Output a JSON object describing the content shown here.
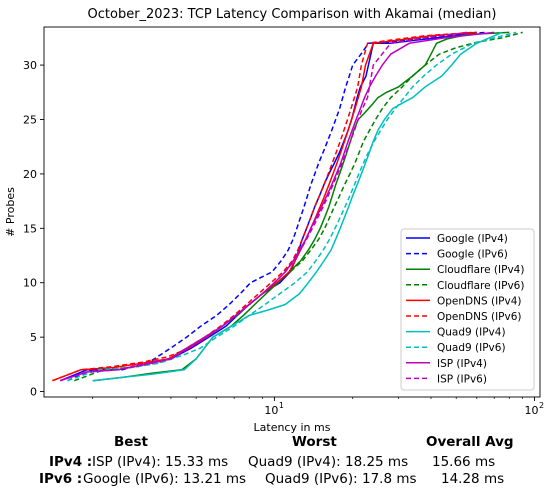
{
  "chart_data": {
    "type": "line",
    "title": "October_2023: TCP Latency Comparison with Akamai (median)",
    "xlabel": "Latency in ms",
    "ylabel": "# Probes",
    "xscale": "log",
    "xlim": [
      1.3,
      105
    ],
    "ylim": [
      -0.5,
      33.5
    ],
    "xticks": [
      {
        "value": 10,
        "label": "10",
        "exp": "1"
      },
      {
        "value": 100,
        "label": "10",
        "exp": "2"
      }
    ],
    "yticks": [
      0,
      5,
      10,
      15,
      20,
      25,
      30
    ],
    "grid": false,
    "legend": "lower-right",
    "series": [
      {
        "name": "Google (IPv4)",
        "color": "#0000ff",
        "dash": "solid",
        "x": [
          1.5,
          1.9,
          2.5,
          3.2,
          4.0,
          4.8,
          5.6,
          6.5,
          7.2,
          8.0,
          9.0,
          10.5,
          11.5,
          12.0,
          12.4,
          12.8,
          13.3,
          13.8,
          14.3,
          14.9,
          15.5,
          16.2,
          17.0,
          17.8,
          18.5,
          19.2,
          19.8,
          20.3,
          20.8,
          21.4,
          22.5,
          24.0,
          28.0,
          35.0,
          50.0,
          60.0
        ],
        "y": [
          1,
          2,
          2,
          2.5,
          3,
          4,
          5,
          6,
          7,
          8,
          9,
          10,
          11,
          12,
          13,
          14,
          15,
          16,
          17,
          18,
          19,
          20,
          21,
          22,
          23,
          24,
          25,
          26,
          27,
          28,
          29,
          32,
          32,
          32.3,
          32.7,
          33
        ]
      },
      {
        "name": "Google (IPv6)",
        "color": "#0000ff",
        "dash": "dashed",
        "x": [
          1.6,
          2.0,
          2.6,
          3.3,
          4.0,
          4.6,
          5.2,
          6.0,
          6.7,
          7.4,
          8.1,
          8.9,
          9.8,
          10.6,
          11.3,
          11.8,
          12.2,
          12.6,
          13.0,
          13.4,
          13.8,
          14.3,
          14.8,
          15.4,
          16.0,
          16.6,
          17.2,
          17.8,
          18.3,
          18.8,
          19.4,
          20.0,
          21.5,
          23.0,
          30.0,
          45.0,
          65.0
        ],
        "y": [
          1,
          2,
          2,
          2.7,
          4,
          5,
          6,
          7,
          8,
          9,
          10,
          10.5,
          11,
          12,
          13,
          14,
          15,
          16,
          17,
          18,
          19,
          20,
          21,
          22,
          23,
          24,
          25,
          26,
          27,
          28,
          29,
          30,
          31,
          32,
          32.2,
          32.7,
          33
        ]
      },
      {
        "name": "Cloudflare (IPv4)",
        "color": "#008000",
        "dash": "solid",
        "x": [
          2.0,
          2.6,
          3.4,
          4.4,
          5.0,
          5.8,
          6.8,
          7.6,
          8.4,
          9.3,
          10.3,
          11.4,
          12.6,
          13.5,
          14.3,
          15.0,
          15.6,
          16.2,
          16.7,
          17.2,
          17.8,
          18.4,
          19.0,
          19.6,
          20.2,
          21.0,
          22.0,
          23.0,
          24.0,
          25.0,
          27.0,
          30.0,
          34.0,
          38.0,
          40.0,
          42.0,
          46.0,
          55.0,
          80.0
        ],
        "y": [
          1,
          1.3,
          1.7,
          2,
          3,
          5,
          6,
          7,
          8,
          9,
          10,
          11,
          12,
          13,
          14,
          15,
          16,
          17,
          18,
          19,
          20,
          21,
          22,
          23,
          24,
          25,
          25.5,
          26,
          26.5,
          27,
          27.5,
          28,
          29,
          30,
          31,
          32,
          32.4,
          32.8,
          33
        ]
      },
      {
        "name": "Cloudflare (IPv6)",
        "color": "#008000",
        "dash": "dashed",
        "x": [
          1.7,
          2.2,
          3.0,
          3.8,
          4.6,
          5.4,
          6.3,
          7.2,
          8.0,
          9.0,
          10.2,
          11.5,
          12.8,
          13.8,
          14.8,
          15.6,
          16.3,
          17.0,
          17.8,
          18.6,
          19.5,
          20.4,
          21.2,
          22.0,
          23.2,
          24.5,
          26.0,
          28.0,
          31.0,
          34.0,
          38.0,
          43.0,
          50.0,
          60.0,
          75.0,
          90.0
        ],
        "y": [
          1,
          2,
          2.3,
          2.8,
          4,
          5,
          6,
          7,
          8,
          9,
          10,
          11,
          12,
          13,
          14,
          15,
          16,
          17,
          18,
          19,
          20,
          21,
          22,
          23,
          24,
          25,
          26,
          27,
          28,
          29,
          30,
          31,
          31.6,
          32.1,
          32.5,
          33
        ]
      },
      {
        "name": "OpenDNS (IPv4)",
        "color": "#ff0000",
        "dash": "solid",
        "x": [
          1.4,
          1.8,
          2.4,
          3.1,
          3.9,
          4.7,
          5.5,
          6.3,
          7.1,
          8.0,
          9.0,
          10.2,
          11.4,
          12.0,
          12.6,
          13.2,
          13.8,
          14.4,
          15.0,
          15.6,
          16.2,
          16.8,
          17.4,
          18.0,
          18.6,
          19.2,
          19.8,
          20.4,
          21.0,
          21.6,
          22.4,
          24.0,
          30.0,
          40.0,
          60.0
        ],
        "y": [
          1,
          2,
          2.2,
          2.6,
          3,
          4,
          5,
          6,
          7,
          8,
          9,
          10,
          11,
          12,
          13,
          14,
          15,
          16,
          17,
          18,
          19,
          20,
          21,
          22,
          23,
          24,
          25,
          26,
          27,
          28,
          30,
          32,
          32.3,
          32.7,
          33
        ]
      },
      {
        "name": "OpenDNS (IPv6)",
        "color": "#ff0000",
        "dash": "dashed",
        "x": [
          1.4,
          1.8,
          2.4,
          3.1,
          3.9,
          4.7,
          5.4,
          6.2,
          7.0,
          7.8,
          8.7,
          9.7,
          10.8,
          11.7,
          12.3,
          12.8,
          13.3,
          13.8,
          14.3,
          14.9,
          15.5,
          16.1,
          16.7,
          17.3,
          17.9,
          18.5,
          19.1,
          19.7,
          20.3,
          20.9,
          21.6,
          22.8,
          28.0,
          38.0,
          58.0
        ],
        "y": [
          1,
          2,
          2.3,
          2.7,
          3.2,
          4,
          5,
          6,
          7,
          8,
          9,
          10,
          11,
          12,
          13,
          14,
          15,
          16,
          17,
          18,
          19,
          20,
          21,
          22,
          23,
          24,
          25,
          26,
          27,
          28,
          30,
          32,
          32.3,
          32.7,
          33
        ]
      },
      {
        "name": "Quad9 (IPv4)",
        "color": "#00bfbf",
        "dash": "solid",
        "x": [
          2.0,
          2.6,
          3.4,
          4.5,
          5.0,
          5.8,
          6.8,
          8.0,
          9.5,
          11.0,
          12.5,
          13.5,
          14.5,
          15.5,
          16.5,
          17.2,
          17.9,
          18.6,
          19.3,
          20.0,
          20.8,
          21.6,
          22.4,
          23.2,
          24.0,
          25.0,
          26.5,
          28.5,
          31.0,
          34.0,
          38.0,
          44.0,
          48.0,
          52.0,
          60.0,
          75.0
        ],
        "y": [
          1,
          1.3,
          1.6,
          2,
          3,
          5,
          6,
          7,
          7.5,
          8,
          9,
          10,
          11,
          12,
          13,
          14,
          15,
          16,
          17,
          18,
          19,
          20,
          21,
          22,
          23,
          24,
          25,
          26,
          26.5,
          27,
          28,
          29,
          30,
          31,
          32,
          33
        ]
      },
      {
        "name": "Quad9 (IPv6)",
        "color": "#00bfbf",
        "dash": "dashed",
        "x": [
          1.6,
          2.1,
          2.8,
          3.6,
          4.4,
          5.2,
          6.0,
          7.0,
          8.0,
          9.2,
          10.5,
          12.0,
          13.4,
          14.4,
          15.4,
          16.3,
          17.1,
          17.9,
          18.7,
          19.5,
          20.3,
          21.1,
          22.0,
          23.0,
          24.2,
          25.6,
          27.2,
          29.2,
          31.5,
          34.0,
          37.5,
          42.0,
          48.0,
          58.0,
          70.0,
          85.0
        ],
        "y": [
          1,
          2,
          2.2,
          2.6,
          3.3,
          4,
          5,
          6,
          7,
          8,
          9,
          10,
          11,
          12,
          13,
          14,
          15,
          16,
          17,
          18,
          19,
          20,
          21,
          22,
          23,
          24,
          25,
          26,
          27,
          28,
          29,
          30,
          31,
          32,
          32.5,
          33
        ]
      },
      {
        "name": "ISP (IPv4)",
        "color": "#bf00bf",
        "dash": "solid",
        "x": [
          1.5,
          1.9,
          2.5,
          3.2,
          4.0,
          4.6,
          5.4,
          6.3,
          7.1,
          8.0,
          9.0,
          10.0,
          11.0,
          11.8,
          12.5,
          13.2,
          13.8,
          14.5,
          15.2,
          15.9,
          16.6,
          17.3,
          18.0,
          18.6,
          19.2,
          19.9,
          20.6,
          21.4,
          22.2,
          23.2,
          24.5,
          26.0,
          28.0,
          33.0,
          45.0,
          70.0
        ],
        "y": [
          1,
          1.8,
          2,
          2.5,
          3,
          4,
          5,
          6,
          7,
          8,
          9,
          10,
          11,
          12,
          13,
          14,
          15,
          16,
          17,
          18,
          19,
          20,
          21,
          22,
          23,
          24,
          25,
          26,
          27,
          28,
          29,
          30,
          31,
          32,
          32.5,
          33
        ]
      },
      {
        "name": "ISP (IPv6)",
        "color": "#bf00bf",
        "dash": "dashed",
        "x": [
          1.5,
          1.9,
          2.5,
          3.2,
          4.0,
          4.7,
          5.5,
          6.3,
          7.1,
          8.0,
          9.0,
          10.0,
          11.0,
          11.9,
          12.6,
          13.3,
          14.0,
          14.7,
          15.4,
          16.1,
          16.8,
          17.5,
          18.2,
          18.9,
          19.6,
          20.3,
          21.0,
          21.8,
          22.8,
          24.0,
          28.0,
          38.0,
          55.0
        ],
        "y": [
          1,
          1.8,
          2,
          2.6,
          3,
          4,
          5,
          6,
          7,
          8,
          9,
          10,
          11,
          12,
          13,
          14,
          15,
          16,
          17,
          18,
          19,
          20,
          21,
          22,
          23,
          24,
          25,
          26,
          27,
          30,
          32,
          32.5,
          33
        ]
      }
    ]
  },
  "summary": {
    "headers": {
      "best": "Best",
      "worst": "Worst",
      "avg": "Overall Avg"
    },
    "ipv4": {
      "label": "IPv4 :",
      "best": "ISP (IPv4): 15.33 ms",
      "worst": "Quad9 (IPv4): 18.25 ms",
      "avg": "15.66 ms"
    },
    "ipv6": {
      "label": "IPv6 :",
      "best": "Google (IPv6): 13.21 ms",
      "worst": "Quad9 (IPv6): 17.8 ms",
      "avg": "14.28 ms"
    }
  }
}
